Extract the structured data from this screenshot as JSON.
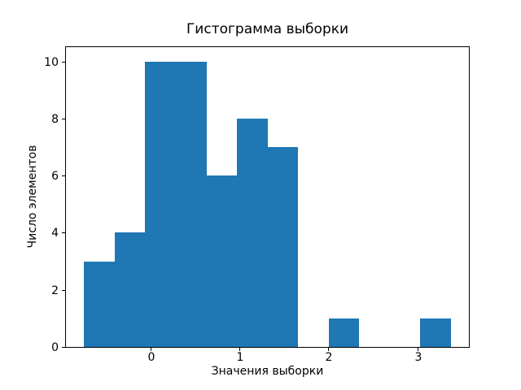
{
  "chart_data": {
    "type": "bar",
    "subtype": "histogram",
    "title": "Гистограмма выборки",
    "xlabel": "Значения выборки",
    "ylabel": "Число элементов",
    "bin_edges": [
      -0.745,
      -0.402,
      -0.058,
      0.286,
      0.629,
      0.973,
      1.316,
      1.66,
      2.003,
      2.347,
      2.69,
      3.034,
      3.377
    ],
    "counts": [
      3,
      4,
      10,
      10,
      6,
      8,
      7,
      0,
      1,
      0,
      0,
      1
    ],
    "xticks": [
      0,
      1,
      2,
      3
    ],
    "yticks": [
      0,
      2,
      4,
      6,
      8,
      10
    ],
    "xlim": [
      -0.95,
      3.58
    ],
    "ylim": [
      0,
      10.5
    ],
    "bar_color": "#1f77b4",
    "background_color": "#ffffff",
    "spine_color": "#000000",
    "grid": false,
    "legend": null
  }
}
